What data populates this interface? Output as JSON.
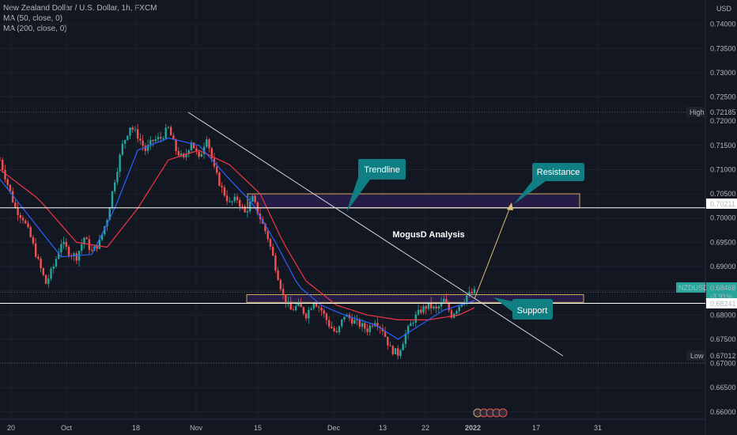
{
  "legend": {
    "symbol_line": "New Zealand Dollar / U.S. Dollar, 1h, FXCM",
    "ma50": "MA (50, close, 0)",
    "ma200": "MA (200, close, 0)"
  },
  "currency": "USD",
  "colors": {
    "background": "#131722",
    "candle_up": "#26a69a",
    "candle_down": "#ef5350",
    "ma50": "#2962ff",
    "ma200": "#f23645",
    "zone_fill": "#2a1f4d",
    "zone_border": "#d4a95b",
    "callout": "#0f7f83",
    "trendline": "#d1d4dc",
    "arrow": "#e0c070",
    "price_tag": "#26a69a"
  },
  "chart_data": {
    "type": "candlestick",
    "title": "MogusD Analysis",
    "series": [
      {
        "name": "NZDUSD"
      },
      {
        "name": "MA (50, close, 0)"
      },
      {
        "name": "MA (200, close, 0)"
      }
    ],
    "y_axis": {
      "ticks": [
        "0.74000",
        "0.73500",
        "0.73000",
        "0.72500",
        "0.72000",
        "0.71500",
        "0.71000",
        "0.70500",
        "0.70000",
        "0.69500",
        "0.69000",
        "0.68500",
        "0.68000",
        "0.67500",
        "0.67000",
        "0.66500",
        "0.66000"
      ],
      "ylim": [
        0.6585,
        0.745
      ]
    },
    "x_axis": {
      "ticks": [
        "20",
        "Oct",
        "18",
        "Nov",
        "15",
        "Dec",
        "13",
        "22",
        "2022",
        "17",
        "31"
      ]
    },
    "markers": {
      "high": {
        "label": "High",
        "value": "0.72185"
      },
      "low": {
        "label": "Low",
        "value": "0.67012"
      },
      "last": {
        "label": "NZDUSD",
        "value": "0.68468",
        "change": "-3.91%"
      },
      "level_resistance": "0.70211",
      "level_support": "0.68241"
    },
    "annotations": {
      "trendline": "Trendline",
      "resistance": "Resistance",
      "support": "Support"
    },
    "price_path": [
      [
        0,
        0.712
      ],
      [
        3,
        0.707
      ],
      [
        6,
        0.702
      ],
      [
        9,
        0.7
      ],
      [
        12,
        0.696
      ],
      [
        15,
        0.691
      ],
      [
        18,
        0.6865
      ],
      [
        21,
        0.69
      ],
      [
        24,
        0.695
      ],
      [
        27,
        0.693
      ],
      [
        30,
        0.692
      ],
      [
        33,
        0.696
      ],
      [
        36,
        0.693
      ],
      [
        39,
        0.695
      ],
      [
        42,
        0.7
      ],
      [
        45,
        0.708
      ],
      [
        48,
        0.715
      ],
      [
        51,
        0.719
      ],
      [
        54,
        0.717
      ],
      [
        57,
        0.714
      ],
      [
        60,
        0.716
      ],
      [
        63,
        0.7165
      ],
      [
        66,
        0.7185
      ],
      [
        69,
        0.714
      ],
      [
        72,
        0.712
      ],
      [
        75,
        0.716
      ],
      [
        78,
        0.712
      ],
      [
        81,
        0.717
      ],
      [
        84,
        0.71
      ],
      [
        87,
        0.706
      ],
      [
        90,
        0.703
      ],
      [
        93,
        0.704
      ],
      [
        96,
        0.701
      ],
      [
        99,
        0.704
      ],
      [
        102,
        0.7
      ],
      [
        105,
        0.696
      ],
      [
        108,
        0.69
      ],
      [
        111,
        0.684
      ],
      [
        114,
        0.681
      ],
      [
        117,
        0.682
      ],
      [
        120,
        0.68
      ],
      [
        123,
        0.683
      ],
      [
        126,
        0.681
      ],
      [
        129,
        0.678
      ],
      [
        132,
        0.676
      ],
      [
        135,
        0.68
      ],
      [
        138,
        0.679
      ],
      [
        141,
        0.678
      ],
      [
        144,
        0.677
      ],
      [
        147,
        0.679
      ],
      [
        150,
        0.677
      ],
      [
        153,
        0.673
      ],
      [
        156,
        0.672
      ],
      [
        159,
        0.676
      ],
      [
        162,
        0.679
      ],
      [
        165,
        0.681
      ],
      [
        168,
        0.682
      ],
      [
        171,
        0.681
      ],
      [
        174,
        0.683
      ],
      [
        177,
        0.68
      ],
      [
        180,
        0.682
      ],
      [
        183,
        0.684
      ],
      [
        186,
        0.6847
      ]
    ],
    "ma50_path": [
      [
        0,
        0.708
      ],
      [
        12,
        0.7
      ],
      [
        24,
        0.692
      ],
      [
        36,
        0.6925
      ],
      [
        45,
        0.702
      ],
      [
        54,
        0.714
      ],
      [
        66,
        0.7165
      ],
      [
        78,
        0.715
      ],
      [
        90,
        0.708
      ],
      [
        99,
        0.703
      ],
      [
        108,
        0.695
      ],
      [
        117,
        0.686
      ],
      [
        126,
        0.682
      ],
      [
        135,
        0.68
      ],
      [
        147,
        0.678
      ],
      [
        156,
        0.675
      ],
      [
        165,
        0.678
      ],
      [
        174,
        0.681
      ],
      [
        186,
        0.683
      ]
    ],
    "ma200_path": [
      [
        0,
        0.71
      ],
      [
        15,
        0.704
      ],
      [
        30,
        0.695
      ],
      [
        42,
        0.694
      ],
      [
        54,
        0.702
      ],
      [
        66,
        0.712
      ],
      [
        78,
        0.714
      ],
      [
        90,
        0.711
      ],
      [
        102,
        0.705
      ],
      [
        111,
        0.695
      ],
      [
        120,
        0.687
      ],
      [
        132,
        0.682
      ],
      [
        144,
        0.68
      ],
      [
        156,
        0.679
      ],
      [
        168,
        0.679
      ],
      [
        180,
        0.68
      ],
      [
        186,
        0.6815
      ]
    ],
    "zones": [
      {
        "name": "resistance-zone",
        "from": 0.7021,
        "to": 0.705
      },
      {
        "name": "support-zone",
        "from": 0.6826,
        "to": 0.6842
      }
    ]
  }
}
